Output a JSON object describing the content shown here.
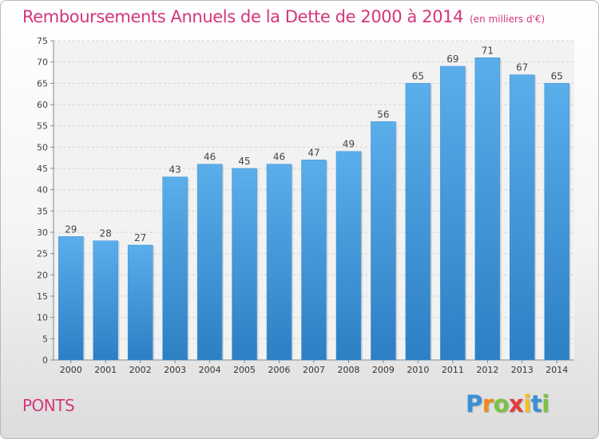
{
  "chart_data": {
    "type": "bar",
    "title": "Remboursements Annuels de la Dette de 2000 à 2014",
    "subtitle": "(en milliers d'€)",
    "categories": [
      "2000",
      "2001",
      "2002",
      "2003",
      "2004",
      "2005",
      "2006",
      "2007",
      "2008",
      "2009",
      "2010",
      "2011",
      "2012",
      "2013",
      "2014"
    ],
    "values": [
      29,
      28,
      27,
      43,
      46,
      45,
      46,
      47,
      49,
      56,
      65,
      69,
      71,
      67,
      65
    ],
    "ylim": [
      0,
      75
    ],
    "yticks": [
      0,
      5,
      10,
      15,
      20,
      25,
      30,
      35,
      40,
      45,
      50,
      55,
      60,
      65,
      70,
      75
    ],
    "xlabel": "",
    "ylabel": "",
    "grid": true,
    "bar_color": "#4a9fdf",
    "title_color": "#d4367a"
  },
  "footer": {
    "location": "PONTS",
    "brand": {
      "letters": [
        "P",
        "r",
        "o",
        "x",
        "i",
        "t",
        "i"
      ],
      "colors": [
        "#3a8fd8",
        "#f08a1c",
        "#7cc242",
        "#e23c3c",
        "#f4c01a",
        "#3a8fd8",
        "#7cc242"
      ]
    }
  }
}
